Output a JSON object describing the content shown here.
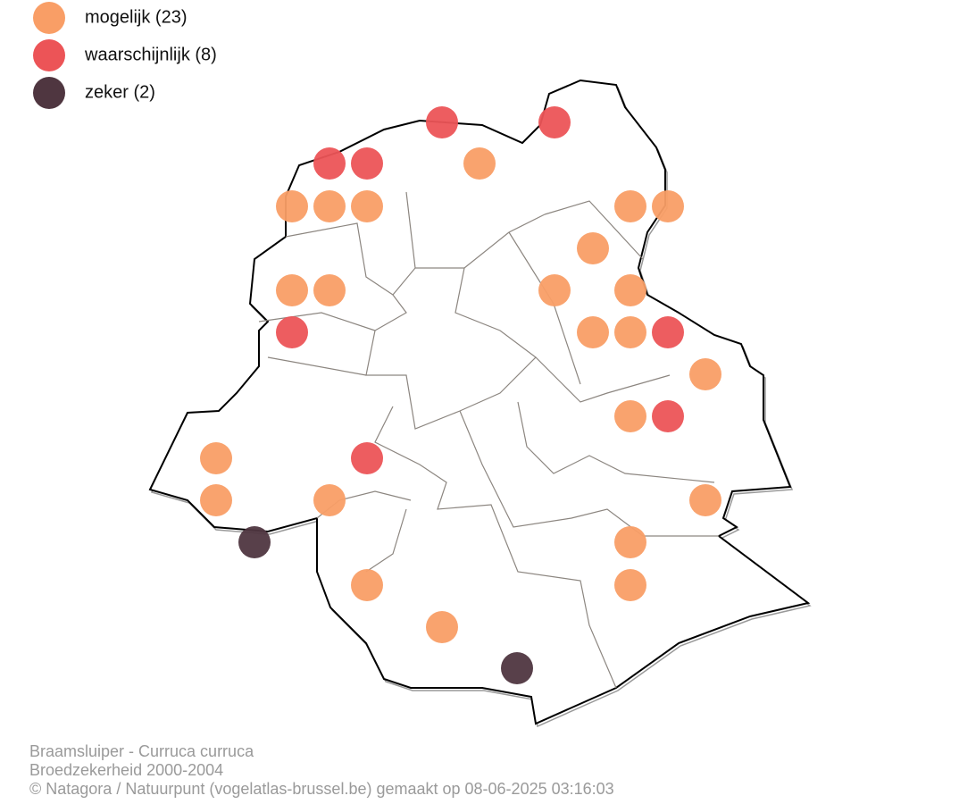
{
  "legend": {
    "items": [
      {
        "label": "mogelijk (23)",
        "color": "#f99e66"
      },
      {
        "label": "waarschijnlijk (8)",
        "color": "#ec5457"
      },
      {
        "label": "zeker (2)",
        "color": "#4f3640"
      }
    ]
  },
  "caption": {
    "lines": [
      "Braamsluiper - Curruca curruca",
      "Broedzekerheid 2000-2004",
      "© Natagora / Natuurpunt (vogelatlas-brussel.be) gemaakt op 08-06-2025 03:16:03"
    ]
  }
}
